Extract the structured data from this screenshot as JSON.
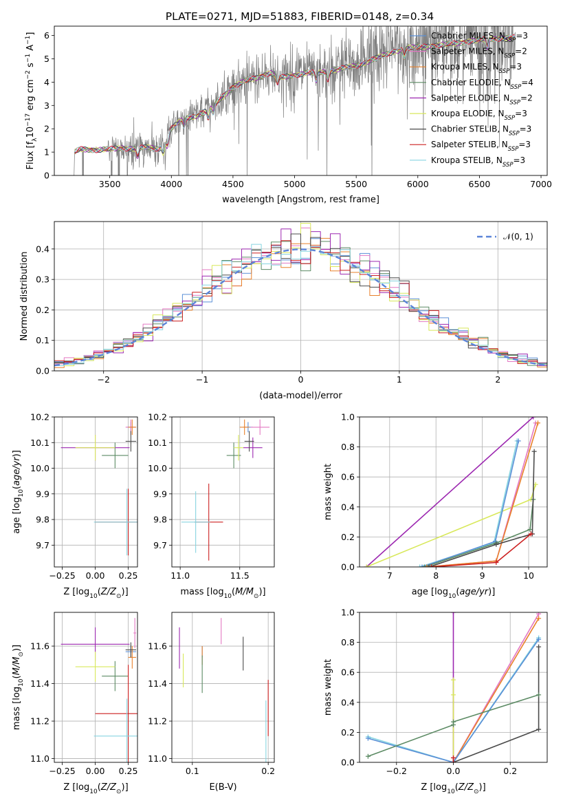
{
  "figure": {
    "title": "PLATE=0271, MJD=51883, FIBERID=0148, z=0.34"
  },
  "models": [
    {
      "label": "Chabrier MILES, N_SSP=3",
      "leg_main": "Chabrier MILES, N",
      "leg_nssp": "=3",
      "color": "#5a8fd6"
    },
    {
      "label": "Salpeter MILES, N_SSP=2",
      "leg_main": "Salpeter MILES, N",
      "leg_nssp": "=2",
      "color": "#e377c2"
    },
    {
      "label": "Kroupa MILES, N_SSP=3",
      "leg_main": "Kroupa MILES, N",
      "leg_nssp": "=3",
      "color": "#e8802a"
    },
    {
      "label": "Chabrier ELODIE, N_SSP=4",
      "leg_main": "Chabrier ELODIE, N",
      "leg_nssp": "=4",
      "color": "#5b8a63"
    },
    {
      "label": "Salpeter ELODIE, N_SSP=2",
      "leg_main": "Salpeter ELODIE, N",
      "leg_nssp": "=2",
      "color": "#9c27b0"
    },
    {
      "label": "Kroupa ELODIE, N_SSP=3",
      "leg_main": "Kroupa ELODIE, N",
      "leg_nssp": "=3",
      "color": "#d8e85a"
    },
    {
      "label": "Chabrier STELIB, N_SSP=3",
      "leg_main": "Chabrier STELIB, N",
      "leg_nssp": "=3",
      "color": "#4a4a4a"
    },
    {
      "label": "Salpeter STELIB, N_SSP=3",
      "leg_main": "Salpeter STELIB, N",
      "leg_nssp": "=3",
      "color": "#cc1f1f"
    },
    {
      "label": "Kroupa STELIB, N_SSP=3",
      "leg_main": "Kroupa STELIB, N",
      "leg_nssp": "=3",
      "color": "#86d4e0"
    }
  ],
  "chart_data": [
    {
      "id": "spectrum",
      "type": "line",
      "title": "PLATE=0271, MJD=51883, FIBERID=0148, z=0.34",
      "xlabel": "wavelength [Angstrom, rest frame]",
      "ylabel": "Flux [f_λ 10^-17 erg cm^-2 s^-1 A^-1]",
      "xlim": [
        3050,
        7050
      ],
      "ylim": [
        0,
        6.4
      ],
      "xticks": [
        3500,
        4000,
        4500,
        5000,
        5500,
        6000,
        6500,
        7000
      ],
      "yticks": [
        0,
        1,
        2,
        3,
        4,
        5,
        6
      ],
      "data_color": "#808080",
      "data_start": 3210,
      "continuum_points": [
        [
          3210,
          0
        ],
        [
          3215,
          1.0
        ],
        [
          3260,
          1.12
        ],
        [
          3400,
          1.1
        ],
        [
          3500,
          1.12
        ],
        [
          3600,
          1.18
        ],
        [
          3700,
          1.15
        ],
        [
          3800,
          1.2
        ],
        [
          3900,
          1.15
        ],
        [
          3950,
          1.4
        ],
        [
          4000,
          2.0
        ],
        [
          4100,
          2.45
        ],
        [
          4200,
          2.55
        ],
        [
          4300,
          2.8
        ],
        [
          4400,
          3.3
        ],
        [
          4500,
          3.8
        ],
        [
          4600,
          4.05
        ],
        [
          4700,
          4.2
        ],
        [
          4800,
          4.4
        ],
        [
          4900,
          4.2
        ],
        [
          5000,
          4.3
        ],
        [
          5100,
          4.4
        ],
        [
          5200,
          4.4
        ],
        [
          5300,
          4.5
        ],
        [
          5400,
          4.6
        ],
        [
          5500,
          4.7
        ],
        [
          5600,
          4.9
        ],
        [
          5700,
          5.1
        ],
        [
          5800,
          5.3
        ],
        [
          5900,
          5.45
        ],
        [
          6000,
          5.5
        ],
        [
          6100,
          5.55
        ],
        [
          6200,
          5.6
        ],
        [
          6300,
          5.65
        ],
        [
          6400,
          5.75
        ],
        [
          6500,
          5.8
        ],
        [
          6600,
          5.85
        ],
        [
          6700,
          5.9
        ],
        [
          6790,
          5.9
        ]
      ],
      "grid": false,
      "legend": "upper right"
    },
    {
      "id": "residuals",
      "type": "histogram",
      "xlabel": "(data-model)/error",
      "ylabel": "Normed distribution",
      "xlim": [
        -2.5,
        2.5
      ],
      "ylim": [
        0,
        0.49
      ],
      "xticks": [
        -2,
        -1,
        0,
        1,
        2
      ],
      "yticks": [
        0.0,
        0.1,
        0.2,
        0.3,
        0.4
      ],
      "bin_width": 0.1,
      "reference": {
        "label": "𝒩(0, 1)",
        "mean": 0,
        "sigma": 1,
        "color": "#5b84d8"
      },
      "grid": true,
      "legend": "upper right"
    },
    {
      "id": "age_vs_Z",
      "type": "errorbar",
      "xlabel": "Z [log10(Z/Z⊙)]",
      "ylabel": "age [log10(age/yr)]",
      "xlim": [
        -0.31,
        0.32
      ],
      "ylim": [
        9.615,
        10.2
      ],
      "xticks": [
        -0.25,
        0.0,
        0.25
      ],
      "yticks": [
        9.7,
        9.8,
        9.9,
        10.0,
        10.1,
        10.2
      ],
      "points": [
        {
          "model": 0,
          "x": 0.27,
          "y": 10.16,
          "xerr": 0.03,
          "yerr": 0.02
        },
        {
          "model": 1,
          "x": 0.27,
          "y": 10.16,
          "xerr": 0.04,
          "yerr": 0.03
        },
        {
          "model": 2,
          "x": 0.28,
          "y": 10.16,
          "xerr": 0.03,
          "yerr": 0.03
        },
        {
          "model": 3,
          "x": 0.15,
          "y": 10.05,
          "xerr": 0.1,
          "yerr": 0.05
        },
        {
          "model": 4,
          "x": 0.0,
          "y": 10.08,
          "xerr": 0.26,
          "yerr": 0.05
        },
        {
          "model": 5,
          "x": 0.0,
          "y": 10.08,
          "xerr": 0.15,
          "yerr": 0.05
        },
        {
          "model": 6,
          "x": 0.27,
          "y": 10.105,
          "xerr": 0.04,
          "yerr": 0.04
        },
        {
          "model": 7,
          "x": 0.25,
          "y": 9.79,
          "xerr": 0.25,
          "yerr": 0.13
        },
        {
          "model": 8,
          "x": 0.24,
          "y": 9.79,
          "xerr": 0.25,
          "yerr": 0.13
        }
      ],
      "grid": true
    },
    {
      "id": "age_vs_mass",
      "type": "errorbar",
      "xlabel": "mass [log10(M/M⊙)]",
      "ylabel": "",
      "xlim": [
        10.93,
        11.79
      ],
      "ylim": [
        9.615,
        10.2
      ],
      "xticks": [
        11.0,
        11.5
      ],
      "yticks": [
        9.7,
        9.8,
        9.9,
        10.0,
        10.1,
        10.2
      ],
      "points": [
        {
          "model": 0,
          "x": 11.57,
          "y": 10.16,
          "xerr": 0.04,
          "yerr": 0.02
        },
        {
          "model": 1,
          "x": 11.67,
          "y": 10.16,
          "xerr": 0.08,
          "yerr": 0.03
        },
        {
          "model": 2,
          "x": 11.54,
          "y": 10.16,
          "xerr": 0.04,
          "yerr": 0.03
        },
        {
          "model": 3,
          "x": 11.45,
          "y": 10.05,
          "xerr": 0.06,
          "yerr": 0.05
        },
        {
          "model": 4,
          "x": 11.61,
          "y": 10.08,
          "xerr": 0.08,
          "yerr": 0.04
        },
        {
          "model": 5,
          "x": 11.49,
          "y": 10.08,
          "xerr": 0.04,
          "yerr": 0.05
        },
        {
          "model": 6,
          "x": 11.58,
          "y": 10.105,
          "xerr": 0.04,
          "yerr": 0.04
        },
        {
          "model": 7,
          "x": 11.24,
          "y": 9.79,
          "xerr": 0.12,
          "yerr": 0.15
        },
        {
          "model": 8,
          "x": 11.13,
          "y": 9.79,
          "xerr": 0.12,
          "yerr": 0.12
        }
      ],
      "grid": true
    },
    {
      "id": "weight_vs_age",
      "type": "line",
      "xlabel": "age [log10(age/yr)]",
      "ylabel": "mass weight",
      "xlim": [
        6.35,
        10.4
      ],
      "ylim": [
        0,
        1.0
      ],
      "xticks": [
        7,
        8,
        9,
        10
      ],
      "yticks": [
        0.0,
        0.2,
        0.4,
        0.6,
        0.8,
        1.0
      ],
      "series": [
        {
          "model": 4,
          "x": [
            6.5,
            10.1
          ],
          "y": [
            0.0,
            1.0
          ]
        },
        {
          "model": 5,
          "x": [
            6.5,
            10.05,
            10.15
          ],
          "y": [
            0.0,
            0.45,
            0.55
          ]
        },
        {
          "model": 1,
          "x": [
            7.8,
            9.3,
            10.15
          ],
          "y": [
            0.0,
            0.04,
            0.96
          ]
        },
        {
          "model": 8,
          "x": [
            7.65,
            9.25,
            9.75
          ],
          "y": [
            0.0,
            0.16,
            0.84
          ]
        },
        {
          "model": 0,
          "x": [
            7.7,
            9.28,
            9.78
          ],
          "y": [
            0.0,
            0.17,
            0.84
          ]
        },
        {
          "model": 3,
          "x": [
            7.75,
            9.3,
            10.03,
            10.1
          ],
          "y": [
            0.0,
            0.16,
            0.25,
            0.45
          ]
        },
        {
          "model": 2,
          "x": [
            7.8,
            9.3,
            10.2
          ],
          "y": [
            0.0,
            0.04,
            0.96
          ]
        },
        {
          "model": 6,
          "x": [
            7.85,
            9.3,
            10.08,
            10.12
          ],
          "y": [
            0.0,
            0.15,
            0.22,
            0.77
          ]
        },
        {
          "model": 7,
          "x": [
            7.9,
            9.3,
            10.05
          ],
          "y": [
            0.0,
            0.03,
            0.22
          ]
        }
      ],
      "grid": true
    },
    {
      "id": "mass_vs_Z",
      "type": "errorbar",
      "xlabel": "Z [log10(Z/Z⊙)]",
      "ylabel": "mass [log10(M/M⊙)]",
      "xlim": [
        -0.31,
        0.32
      ],
      "ylim": [
        10.98,
        11.78
      ],
      "xticks": [
        -0.25,
        0.0,
        0.25
      ],
      "yticks": [
        11.0,
        11.2,
        11.4,
        11.6
      ],
      "points": [
        {
          "model": 0,
          "x": 0.27,
          "y": 11.57,
          "xerr": 0.04,
          "yerr": 0.03
        },
        {
          "model": 1,
          "x": 0.3,
          "y": 11.67,
          "xerr": 0.01,
          "yerr": 0.08
        },
        {
          "model": 2,
          "x": 0.28,
          "y": 11.54,
          "xerr": 0.03,
          "yerr": 0.06
        },
        {
          "model": 3,
          "x": 0.15,
          "y": 11.44,
          "xerr": 0.1,
          "yerr": 0.08
        },
        {
          "model": 4,
          "x": 0.0,
          "y": 11.61,
          "xerr": 0.26,
          "yerr": 0.09
        },
        {
          "model": 5,
          "x": 0.0,
          "y": 11.49,
          "xerr": 0.15,
          "yerr": 0.08
        },
        {
          "model": 6,
          "x": 0.27,
          "y": 11.58,
          "xerr": 0.04,
          "yerr": 0.04
        },
        {
          "model": 7,
          "x": 0.25,
          "y": 11.24,
          "xerr": 0.25,
          "yerr": 0.26
        },
        {
          "model": 8,
          "x": 0.24,
          "y": 11.12,
          "xerr": 0.25,
          "yerr": 0.2
        }
      ],
      "grid": true
    },
    {
      "id": "mass_vs_ebv",
      "type": "errorbar",
      "xlabel": "E(B-V)",
      "ylabel": "",
      "xlim": [
        0.073,
        0.208
      ],
      "ylim": [
        10.98,
        11.78
      ],
      "xticks": [
        0.1,
        0.2
      ],
      "yticks": [
        11.0,
        11.2,
        11.4,
        11.6
      ],
      "points": [
        {
          "model": 0,
          "x": 0.113,
          "y": 11.57,
          "xerr": 0.0,
          "yerr": 0.03
        },
        {
          "model": 1,
          "x": 0.138,
          "y": 11.68,
          "xerr": 0.0,
          "yerr": 0.07
        },
        {
          "model": 2,
          "x": 0.113,
          "y": 11.55,
          "xerr": 0.0,
          "yerr": 0.05
        },
        {
          "model": 3,
          "x": 0.113,
          "y": 11.45,
          "xerr": 0.0,
          "yerr": 0.1
        },
        {
          "model": 4,
          "x": 0.083,
          "y": 11.59,
          "xerr": 0.0,
          "yerr": 0.11
        },
        {
          "model": 5,
          "x": 0.088,
          "y": 11.47,
          "xerr": 0.0,
          "yerr": 0.09
        },
        {
          "model": 6,
          "x": 0.167,
          "y": 11.56,
          "xerr": 0.0,
          "yerr": 0.09
        },
        {
          "model": 7,
          "x": 0.2,
          "y": 11.27,
          "xerr": 0.0,
          "yerr": 0.15
        },
        {
          "model": 8,
          "x": 0.197,
          "y": 11.14,
          "xerr": 0.0,
          "yerr": 0.17
        }
      ],
      "grid": true
    },
    {
      "id": "weight_vs_Z",
      "type": "line",
      "xlabel": "Z [log10(Z/Z⊙)]",
      "ylabel": "mass weight",
      "xlim": [
        -0.33,
        0.33
      ],
      "ylim": [
        0,
        1.0
      ],
      "xticks": [
        -0.2,
        0.0,
        0.2
      ],
      "yticks": [
        0.0,
        0.2,
        0.4,
        0.6,
        0.8,
        1.0
      ],
      "series": [
        {
          "model": 4,
          "x": [
            0.0,
            0.0
          ],
          "y": [
            0.0,
            1.0
          ]
        },
        {
          "model": 5,
          "x": [
            0.0,
            0.0,
            0.0
          ],
          "y": [
            0.0,
            0.45,
            0.55
          ]
        },
        {
          "model": 1,
          "x": [
            0.0,
            0.3
          ],
          "y": [
            0.0,
            0.99
          ]
        },
        {
          "model": 2,
          "x": [
            0.0,
            0.3
          ],
          "y": [
            0.0,
            0.96
          ]
        },
        {
          "model": 8,
          "x": [
            -0.3,
            0.0,
            0.3
          ],
          "y": [
            0.17,
            0.0,
            0.83
          ]
        },
        {
          "model": 0,
          "x": [
            -0.3,
            0.0,
            0.3
          ],
          "y": [
            0.16,
            0.0,
            0.82
          ]
        },
        {
          "model": 6,
          "x": [
            0.0,
            0.3,
            0.3
          ],
          "y": [
            0.0,
            0.22,
            0.77
          ]
        },
        {
          "model": 3,
          "x": [
            -0.3,
            0.0,
            0.0,
            0.3
          ],
          "y": [
            0.04,
            0.25,
            0.27,
            0.45
          ]
        },
        {
          "model": 7,
          "x": [
            0.0,
            0.0
          ],
          "y": [
            0.0,
            0.03
          ]
        }
      ],
      "grid": true
    }
  ]
}
